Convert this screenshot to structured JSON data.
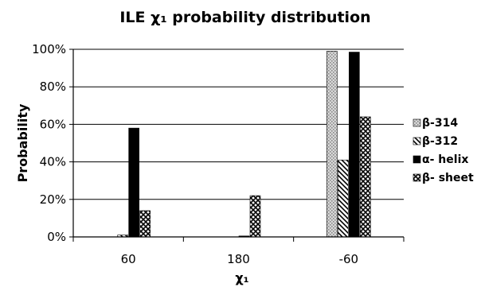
{
  "chart_data": {
    "type": "bar",
    "title": "ILE  χ₁ probability distribution",
    "xlabel": "χ₁",
    "ylabel": "Probability",
    "categories": [
      "60",
      "180",
      "-60"
    ],
    "ylim": [
      0,
      100
    ],
    "y_ticks": [
      "0%",
      "20%",
      "40%",
      "60%",
      "80%",
      "100%"
    ],
    "grid": true,
    "legend_position": "right",
    "series": [
      {
        "name": "β-314",
        "values": [
          0,
          0,
          99
        ],
        "pattern": "dots"
      },
      {
        "name": "β-312",
        "values": [
          1,
          0,
          41
        ],
        "pattern": "diagonal"
      },
      {
        "name": "α- helix",
        "values": [
          58,
          0.5,
          98.5
        ],
        "pattern": "solid"
      },
      {
        "name": "β- sheet",
        "values": [
          14,
          22,
          64
        ],
        "pattern": "checker"
      }
    ]
  }
}
